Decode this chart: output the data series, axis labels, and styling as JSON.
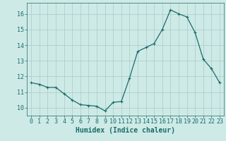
{
  "x": [
    0,
    1,
    2,
    3,
    4,
    5,
    6,
    7,
    8,
    9,
    10,
    11,
    12,
    13,
    14,
    15,
    16,
    17,
    18,
    19,
    20,
    21,
    22,
    23
  ],
  "y": [
    11.6,
    11.5,
    11.3,
    11.3,
    10.9,
    10.5,
    10.2,
    10.15,
    10.1,
    9.8,
    10.35,
    10.4,
    11.9,
    13.6,
    13.85,
    14.1,
    15.0,
    16.25,
    16.0,
    15.8,
    14.8,
    13.1,
    12.5,
    11.6
  ],
  "line_color": "#1a6b6b",
  "marker": "+",
  "marker_size": 3,
  "marker_linewidth": 0.8,
  "line_width": 0.9,
  "bg_color": "#ceeae6",
  "grid_color": "#a8cac8",
  "tick_color": "#1a6b6b",
  "xlabel": "Humidex (Indice chaleur)",
  "xlabel_fontsize": 7,
  "tick_fontsize": 6,
  "ylabel_ticks": [
    10,
    11,
    12,
    13,
    14,
    15,
    16
  ],
  "xlim": [
    -0.5,
    23.5
  ],
  "ylim": [
    9.5,
    16.7
  ],
  "xticks": [
    0,
    1,
    2,
    3,
    4,
    5,
    6,
    7,
    8,
    9,
    10,
    11,
    12,
    13,
    14,
    15,
    16,
    17,
    18,
    19,
    20,
    21,
    22,
    23
  ]
}
